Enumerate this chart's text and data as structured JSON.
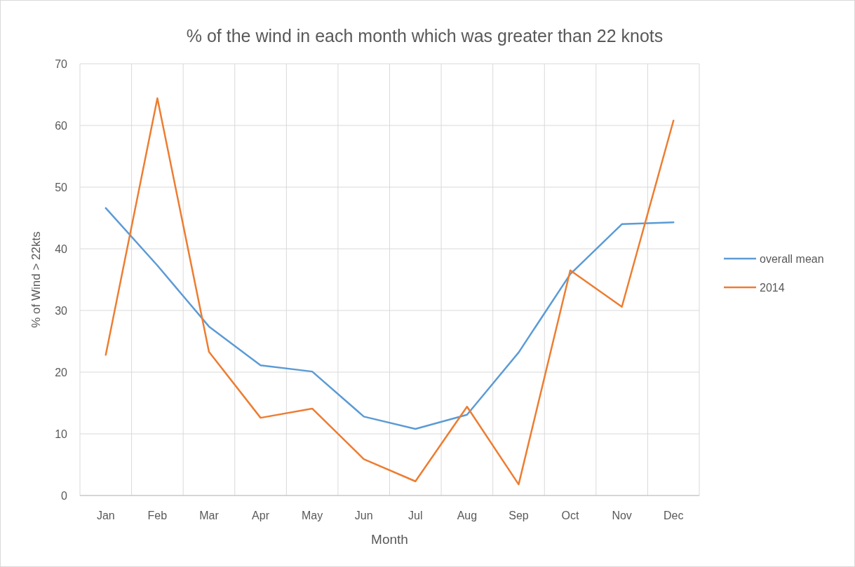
{
  "chart_data": {
    "type": "line",
    "title": "% of the wind in each month which was greater than 22 knots",
    "xlabel": "Month",
    "ylabel": "% of Wind > 22kts",
    "categories": [
      "Jan",
      "Feb",
      "Mar",
      "Apr",
      "May",
      "Jun",
      "Jul",
      "Aug",
      "Sep",
      "Oct",
      "Nov",
      "Dec"
    ],
    "series": [
      {
        "name": "overall mean",
        "color": "#5b9bd5",
        "values": [
          46.6,
          37.3,
          27.4,
          21.1,
          20.1,
          12.8,
          10.8,
          13.1,
          23.2,
          35.9,
          44.0,
          44.3
        ]
      },
      {
        "name": "2014",
        "color": "#ed7d31",
        "values": [
          22.8,
          64.4,
          23.3,
          12.6,
          14.1,
          5.9,
          2.3,
          14.4,
          1.8,
          36.5,
          30.6,
          60.8
        ]
      }
    ],
    "ylim": [
      0,
      70
    ],
    "yticks": [
      0,
      10,
      20,
      30,
      40,
      50,
      60,
      70
    ],
    "grid": true,
    "legend": "right",
    "marker": "none",
    "line_style": "solid"
  }
}
